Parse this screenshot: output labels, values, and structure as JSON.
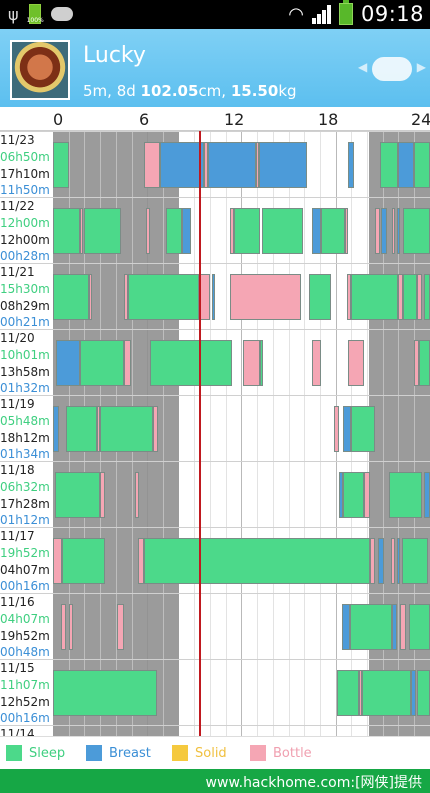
{
  "status": {
    "time": "09:18",
    "battery_small": "100%",
    "icons": [
      "usb-icon",
      "battery-small-icon",
      "cloud-icon",
      "wifi-icon",
      "signal-icon",
      "battery-icon"
    ]
  },
  "header": {
    "name": "Lucky",
    "age": "5m, 8d",
    "height": "102.05",
    "height_unit": "cm,",
    "weight": "15.50",
    "weight_unit": "kg",
    "bg_color": "#5cbfef"
  },
  "axis": {
    "ticks": [
      "0",
      "6",
      "12",
      "18",
      "24"
    ]
  },
  "days": [
    {
      "date": "11/23",
      "sleep": "06h50m",
      "awake": "17h10m",
      "breast": "11h50m",
      "events": [
        [
          "sleep",
          0,
          1
        ],
        [
          "bottle",
          5.8,
          6.8
        ],
        [
          "breast",
          6.8,
          9.6
        ],
        [
          "bottle",
          9.6,
          9.9
        ],
        [
          "breast",
          9.9,
          12.9
        ],
        [
          "bottle",
          12.9,
          13.1
        ],
        [
          "breast",
          13.1,
          16.2
        ],
        [
          "breast",
          18.8,
          19.2
        ],
        [
          "sleep",
          20.8,
          22.0
        ],
        [
          "breast",
          22.0,
          23.0
        ],
        [
          "sleep",
          23.0,
          24
        ]
      ]
    },
    {
      "date": "11/22",
      "sleep": "12h00m",
      "awake": "12h00m",
      "breast": "00h28m",
      "events": [
        [
          "sleep",
          0,
          1.7
        ],
        [
          "bottle",
          1.7,
          1.9
        ],
        [
          "sleep",
          2.0,
          4.3
        ],
        [
          "bottle",
          5.9,
          6.2
        ],
        [
          "sleep",
          7.2,
          8.2
        ],
        [
          "breast",
          8.2,
          8.8
        ],
        [
          "bottle",
          11.3,
          11.5
        ],
        [
          "sleep",
          11.5,
          13.2
        ],
        [
          "sleep",
          13.3,
          15.9
        ],
        [
          "breast",
          16.5,
          17.1
        ],
        [
          "sleep",
          17.1,
          18.6
        ],
        [
          "bottle",
          18.6,
          18.8
        ],
        [
          "bottle",
          20.5,
          20.8
        ],
        [
          "breast",
          20.9,
          21.3
        ],
        [
          "bottle",
          21.6,
          21.8
        ],
        [
          "breast",
          21.9,
          22.1
        ],
        [
          "sleep",
          22.3,
          24
        ]
      ]
    },
    {
      "date": "11/21",
      "sleep": "15h30m",
      "awake": "08h29m",
      "breast": "00h21m",
      "events": [
        [
          "sleep",
          0,
          2.3
        ],
        [
          "bottle",
          2.3,
          2.5
        ],
        [
          "bottle",
          4.5,
          4.8
        ],
        [
          "sleep",
          4.8,
          9.3
        ],
        [
          "bottle",
          9.3,
          10.0
        ],
        [
          "breast",
          10.1,
          10.3
        ],
        [
          "bottle",
          11.3,
          15.8
        ],
        [
          "sleep",
          16.3,
          17.7
        ],
        [
          "bottle",
          18.7,
          19.0
        ],
        [
          "sleep",
          19.0,
          22.0
        ],
        [
          "bottle",
          22.0,
          22.3
        ],
        [
          "sleep",
          22.3,
          23.2
        ],
        [
          "bottle",
          23.2,
          23.5
        ],
        [
          "sleep",
          23.6,
          24
        ]
      ]
    },
    {
      "date": "11/20",
      "sleep": "10h01m",
      "awake": "13h58m",
      "breast": "01h32m",
      "events": [
        [
          "breast",
          0.2,
          1.7
        ],
        [
          "sleep",
          1.7,
          4.5
        ],
        [
          "bottle",
          4.5,
          5.0
        ],
        [
          "sleep",
          6.2,
          11.4
        ],
        [
          "bottle",
          12.1,
          13.2
        ],
        [
          "sleep",
          13.2,
          13.4
        ],
        [
          "bottle",
          16.5,
          17.1
        ],
        [
          "bottle",
          18.8,
          19.8
        ],
        [
          "bottle",
          23.0,
          23.3
        ],
        [
          "sleep",
          23.3,
          24
        ]
      ]
    },
    {
      "date": "11/19",
      "sleep": "05h48m",
      "awake": "18h12m",
      "breast": "01h34m",
      "events": [
        [
          "breast",
          0,
          0.4
        ],
        [
          "sleep",
          0.8,
          2.8
        ],
        [
          "bottle",
          2.8,
          3.0
        ],
        [
          "sleep",
          3.0,
          6.4
        ],
        [
          "bottle",
          6.4,
          6.7
        ],
        [
          "bottle",
          17.9,
          18.2
        ],
        [
          "breast",
          18.5,
          19.0
        ],
        [
          "sleep",
          19.0,
          20.5
        ]
      ]
    },
    {
      "date": "11/18",
      "sleep": "06h32m",
      "awake": "17h28m",
      "breast": "01h12m",
      "events": [
        [
          "sleep",
          0.1,
          3.0
        ],
        [
          "bottle",
          3.0,
          3.3
        ],
        [
          "bottle",
          5.2,
          5.5
        ],
        [
          "breast",
          18.2,
          18.5
        ],
        [
          "sleep",
          18.5,
          19.8
        ],
        [
          "bottle",
          19.8,
          20.2
        ],
        [
          "sleep",
          21.4,
          23.5
        ],
        [
          "breast",
          23.6,
          24
        ]
      ]
    },
    {
      "date": "11/17",
      "sleep": "19h52m",
      "awake": "04h07m",
      "breast": "00h16m",
      "events": [
        [
          "bottle",
          0,
          0.6
        ],
        [
          "sleep",
          0.6,
          3.3
        ],
        [
          "bottle",
          5.4,
          5.8
        ],
        [
          "sleep",
          5.8,
          20.2
        ],
        [
          "bottle",
          20.2,
          20.5
        ],
        [
          "breast",
          20.7,
          21.1
        ],
        [
          "bottle",
          21.5,
          21.8
        ],
        [
          "breast",
          21.9,
          22.1
        ],
        [
          "sleep",
          22.2,
          23.9
        ],
        [
          "bottle",
          24.0,
          24.2
        ]
      ]
    },
    {
      "date": "11/16",
      "sleep": "04h07m",
      "awake": "19h52m",
      "breast": "00h48m",
      "events": [
        [
          "bottle",
          0.5,
          0.8
        ],
        [
          "bottle",
          1.0,
          1.3
        ],
        [
          "bottle",
          4.1,
          4.5
        ],
        [
          "breast",
          18.4,
          18.9
        ],
        [
          "sleep",
          18.9,
          21.6
        ],
        [
          "breast",
          21.6,
          21.9
        ],
        [
          "bottle",
          22.1,
          22.5
        ],
        [
          "sleep",
          22.7,
          24
        ]
      ]
    },
    {
      "date": "11/15",
      "sleep": "11h07m",
      "awake": "12h52m",
      "breast": "00h16m",
      "events": [
        [
          "sleep",
          0,
          6.6
        ],
        [
          "sleep",
          18.1,
          19.5
        ],
        [
          "bottle",
          19.5,
          19.7
        ],
        [
          "sleep",
          19.7,
          22.8
        ],
        [
          "breast",
          22.8,
          23.1
        ],
        [
          "sleep",
          23.2,
          24
        ]
      ]
    },
    {
      "date": "11/14",
      "sleep": "",
      "awake": "",
      "breast": "",
      "events": []
    }
  ],
  "legend": [
    {
      "label": "Sleep",
      "color": "#4cd98a",
      "text_color": "#3fcf80"
    },
    {
      "label": "Breast",
      "color": "#4c9bd9",
      "text_color": "#3b8fd6"
    },
    {
      "label": "Solid",
      "color": "#f5c93e",
      "text_color": "#f0c040"
    },
    {
      "label": "Bottle",
      "color": "#f5a6b4",
      "text_color": "#f0a0b0"
    }
  ],
  "footer": {
    "text": "www.hackhome.com:[网侠]提供"
  }
}
